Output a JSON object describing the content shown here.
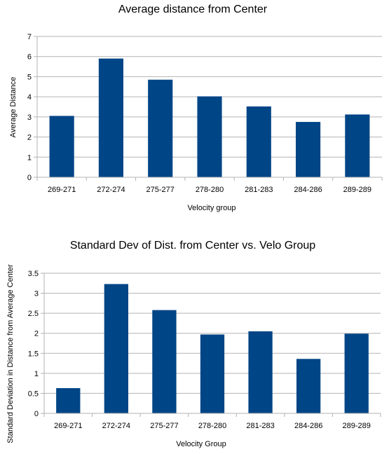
{
  "chart_data": [
    {
      "type": "bar",
      "title": "Average distance from Center",
      "xlabel": "Velocity group",
      "ylabel": "Average Distance",
      "categories": [
        "269-271",
        "272-274",
        "275-277",
        "278-280",
        "281-283",
        "284-286",
        "289-289"
      ],
      "values": [
        3.05,
        5.9,
        4.85,
        4.02,
        3.52,
        2.75,
        3.12
      ],
      "ylim": [
        0,
        7
      ],
      "yticks": [
        "0",
        "1",
        "2",
        "3",
        "4",
        "5",
        "6",
        "7"
      ],
      "grid": true,
      "color": "#004586"
    },
    {
      "type": "bar",
      "title": "Standard Dev of Dist. from Center vs. Velo Group",
      "xlabel": "Velocity Group",
      "ylabel": "Standard Deviation in Distance from Average Center",
      "categories": [
        "269-271",
        "272-274",
        "275-277",
        "278-280",
        "281-283",
        "284-286",
        "289-289"
      ],
      "values": [
        0.63,
        3.23,
        2.58,
        1.97,
        2.05,
        1.36,
        1.99
      ],
      "ylim": [
        0,
        3.5
      ],
      "yticks": [
        "0",
        "0.5",
        "1",
        "1.5",
        "2",
        "2.5",
        "3",
        "3.5"
      ],
      "grid": true,
      "color": "#004586"
    }
  ]
}
